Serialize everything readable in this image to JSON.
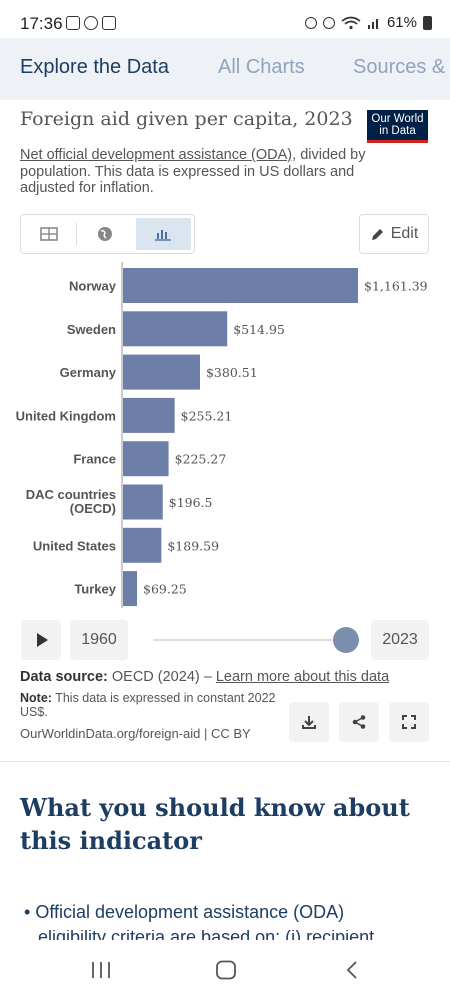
{
  "status_bar": {
    "time": "17:36",
    "battery": "61%"
  },
  "tabs": [
    {
      "label": "Explore the Data"
    },
    {
      "label": "All Charts"
    },
    {
      "label": "Sources & Download"
    }
  ],
  "chart": {
    "title": "Foreign aid given per capita, 2023",
    "logo_text": "Our World in Data",
    "subtitle_link": "Net official development assistance (ODA)",
    "subtitle_rest": ", divided by population. This data is expressed in US dollars and adjusted for inflation.",
    "edit_label": "Edit",
    "bar_color": "#6d7fa8"
  },
  "chart_data": {
    "type": "bar",
    "orientation": "horizontal",
    "title": "Foreign aid given per capita, 2023",
    "categories": [
      "Norway",
      "Sweden",
      "Germany",
      "United Kingdom",
      "France",
      "DAC countries (OECD)",
      "United States",
      "Turkey"
    ],
    "values": [
      1161.39,
      514.95,
      380.51,
      255.21,
      225.27,
      196.5,
      189.59,
      69.25
    ],
    "value_labels": [
      "$1,161.39",
      "$514.95",
      "$380.51",
      "$255.21",
      "$225.27",
      "$196.5",
      "$189.59",
      "$69.25"
    ]
  },
  "timeline": {
    "start_year": "1960",
    "end_year": "2023"
  },
  "footer": {
    "source_label": "Data source:",
    "source_value": " OECD (2024) – ",
    "source_link": "Learn more about this data",
    "note_label": "Note:",
    "note_text": " This data is expressed in constant 2022 US$.",
    "url": "OurWorldinData.org/foreign-aid | CC BY"
  },
  "article": {
    "heading": "What you should know about this indicator",
    "bullet_text": "Official development assistance (ODA)",
    "bullet_clipped": "eligibility criteria are based on: (i) recipient"
  }
}
